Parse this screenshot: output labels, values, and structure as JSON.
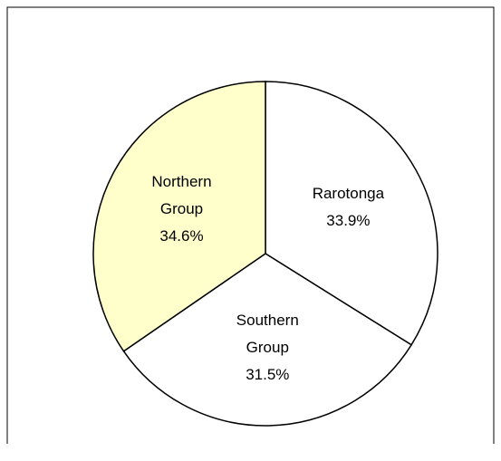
{
  "chart_data": {
    "type": "pie",
    "categories": [
      "Rarotonga",
      "Southern Group",
      "Northern Group"
    ],
    "values": [
      33.9,
      31.5,
      34.6
    ],
    "value_labels": [
      "33.9%",
      "31.5%",
      "34.6%"
    ],
    "colors": [
      "#ffffff",
      "#ffffff",
      "#ffffcc"
    ],
    "start_angle": 0,
    "direction": "clockwise"
  }
}
